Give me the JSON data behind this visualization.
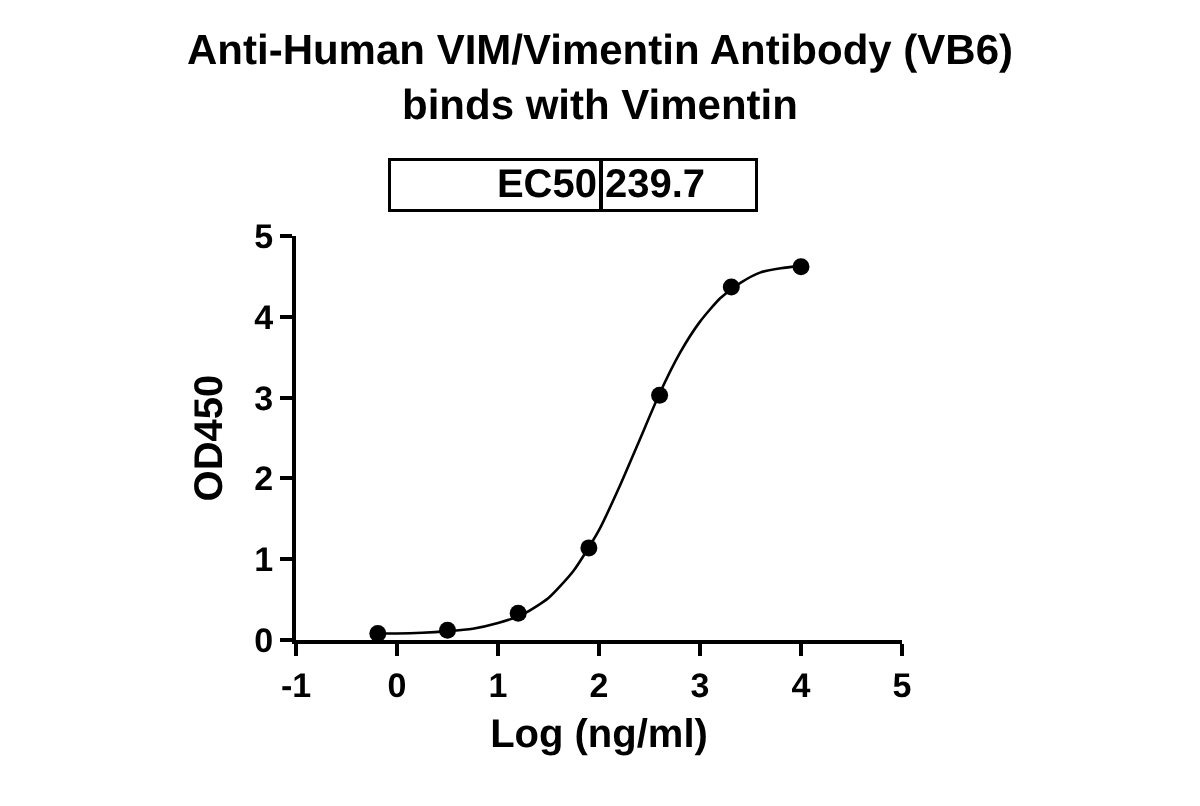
{
  "chart_data": {
    "type": "scatter",
    "title": "Anti-Human VIM/Vimentin Antibody (VB6)\nbinds with Vimentin",
    "xlabel": "Log (ng/ml)",
    "ylabel": "OD450",
    "annotations": [
      "EC50",
      "239.7"
    ],
    "series": [
      {
        "type": "line",
        "marker": "none",
        "color": "#000000",
        "x": [
          -0.19,
          0,
          0.25,
          0.5,
          0.75,
          1.0,
          1.25,
          1.5,
          1.75,
          2.0,
          2.2,
          2.4,
          2.6,
          2.8,
          3.0,
          3.2,
          3.4,
          3.6,
          3.8,
          4.0
        ],
        "values": [
          0.08,
          0.08,
          0.09,
          0.11,
          0.14,
          0.21,
          0.32,
          0.52,
          0.86,
          1.36,
          1.89,
          2.47,
          3.05,
          3.55,
          3.94,
          4.23,
          4.42,
          4.55,
          4.6,
          4.63
        ]
      },
      {
        "marker": "circle",
        "color": "#000000",
        "x": [
          -0.19,
          0.5,
          1.2,
          1.9,
          2.6,
          3.31,
          4.0
        ],
        "values": [
          0.08,
          0.12,
          0.33,
          1.14,
          3.03,
          4.37,
          4.62
        ]
      }
    ],
    "xlim": [
      -1,
      5
    ],
    "xticks": [
      -1,
      0,
      1,
      2,
      3,
      4,
      5
    ],
    "ylim": [
      0,
      5
    ],
    "yticks": [
      0,
      1,
      2,
      3,
      4,
      5
    ],
    "line_style": "solid"
  }
}
